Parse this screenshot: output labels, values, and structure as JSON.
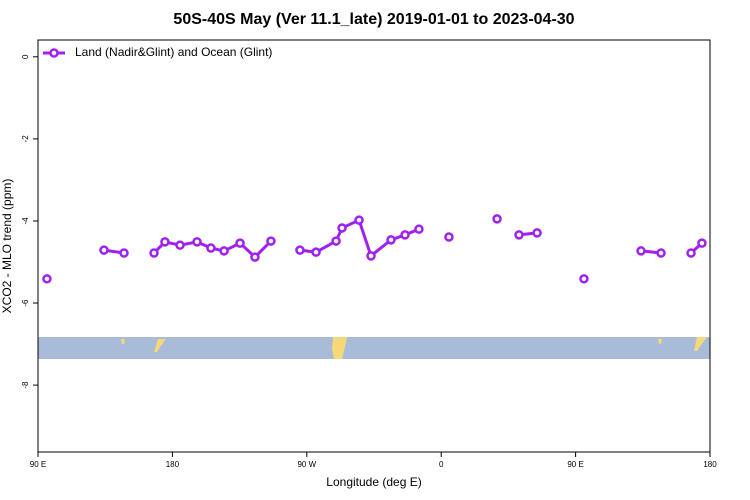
{
  "chart_data": {
    "type": "line",
    "title": "50S-40S May (Ver 11.1_late)   2019-01-01 to 2023-04-30",
    "x_label": "Longitude (deg E)",
    "y_label": "XCO2 - MLO trend (ppm)",
    "x": [
      96.0,
      null,
      134.2,
      147.6,
      null,
      167.7,
      175.0,
      185.1,
      196.5,
      205.8,
      214.6,
      225.3,
      235.3,
      246.0,
      null,
      265.4,
      276.2,
      289.6,
      293.6,
      305.0,
      313.0,
      326.4,
      335.8,
      345.1,
      null,
      365.2,
      null,
      397.4,
      null,
      412.1,
      424.2,
      null,
      455.6,
      null,
      493.8,
      507.2,
      null,
      527.3,
      534.6
    ],
    "series": [
      {
        "name": "Land (Nadir&Glint) and Ocean (Glint)",
        "color": "#a020f0",
        "values": [
          -5.41,
          null,
          -4.71,
          -4.78,
          null,
          -4.78,
          -4.51,
          -4.59,
          -4.51,
          -4.66,
          -4.73,
          -4.54,
          -4.88,
          -4.49,
          null,
          -4.71,
          -4.76,
          -4.49,
          -4.17,
          -3.98,
          -4.85,
          -4.46,
          -4.34,
          -4.2,
          null,
          -4.39,
          null,
          -3.95,
          null,
          -4.34,
          -4.29,
          null,
          -5.41,
          null,
          -4.73,
          -4.78,
          null,
          -4.78,
          -4.54
        ]
      }
    ],
    "xlim": [
      90,
      540
    ],
    "xticks": [
      {
        "value": 90,
        "label": "90 E"
      },
      {
        "value": 180,
        "label": "180"
      },
      {
        "value": 270,
        "label": "90 W"
      },
      {
        "value": 360,
        "label": "0"
      },
      {
        "value": 450,
        "label": "90 E"
      },
      {
        "value": 540,
        "label": "180"
      }
    ],
    "ylim": [
      -9.63,
      0.41
    ],
    "yticks": [
      0,
      -2,
      -4,
      -6,
      -8
    ],
    "legend": "top-left"
  }
}
